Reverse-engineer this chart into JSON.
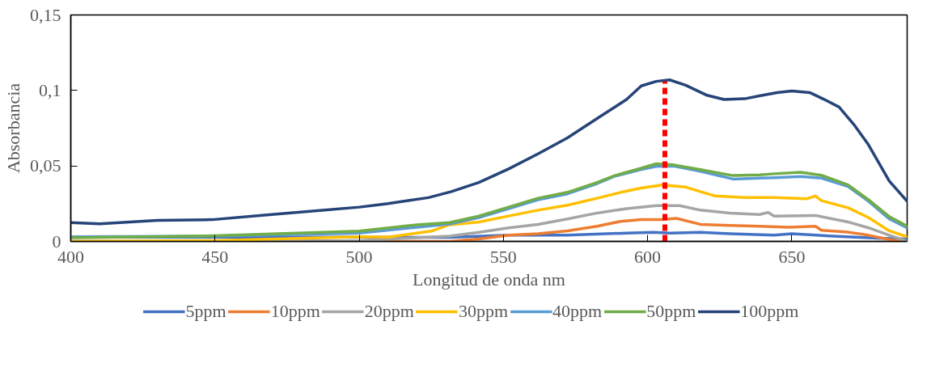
{
  "chart_data": {
    "type": "line",
    "xlabel": "Longitud de onda nm",
    "ylabel": "Absorbancia",
    "xlim": [
      400,
      690
    ],
    "xticks": [
      400,
      450,
      500,
      550,
      600,
      650
    ],
    "ylim": [
      0,
      0.15
    ],
    "yticks": [
      0,
      {
        "value": 0.05,
        "label": "0,05"
      },
      {
        "value": 0.1,
        "label": "0,1"
      },
      {
        "value": 0.15,
        "label": "0,15"
      }
    ],
    "grid": false,
    "legend": "bottom",
    "marker": "none",
    "line_style": "solid",
    "series": [
      {
        "name": "5ppm",
        "color": "#4472c4",
        "x": [
          400,
          450,
          500,
          531.3,
          551.8,
          572.2,
          592.7,
          602,
          608,
          618.3,
          628.5,
          643.9,
          650,
          664.4,
          679.7,
          690
        ],
        "values": [
          0.0028,
          0.0028,
          0.0028,
          0.0027,
          0.0041,
          0.0041,
          0.0055,
          0.006,
          0.0055,
          0.006,
          0.0051,
          0.0041,
          0.0051,
          0.0035,
          0.0022,
          0.0016
        ]
      },
      {
        "name": "10ppm",
        "color": "#ed7d31",
        "x": [
          400,
          450,
          505,
          531.3,
          541.5,
          551.8,
          562,
          572.2,
          582.5,
          590.7,
          597.8,
          605,
          610,
          618.3,
          628.5,
          638.8,
          649,
          658.2,
          660.3,
          669.5,
          676.6,
          683.8,
          687.9
        ],
        "values": [
          0,
          0,
          0,
          0,
          0.0016,
          0.0041,
          0.0051,
          0.007,
          0.01,
          0.0133,
          0.0145,
          0.0145,
          0.0153,
          0.0113,
          0.0106,
          0.01,
          0.0094,
          0.01,
          0.0074,
          0.0061,
          0.0041,
          0.0012,
          0
        ]
      },
      {
        "name": "20ppm",
        "color": "#a5a5a5",
        "x": [
          400,
          450,
          500,
          531.3,
          541.5,
          551.8,
          562,
          572.2,
          582.5,
          592.7,
          603,
          611.1,
          618.3,
          628.5,
          638.8,
          641.8,
          643.9,
          658.2,
          669.5,
          676.6,
          683.8,
          690
        ],
        "values": [
          0,
          0,
          0.0006,
          0.0035,
          0.006,
          0.009,
          0.0113,
          0.0149,
          0.0188,
          0.0217,
          0.0237,
          0.0237,
          0.0207,
          0.0188,
          0.0178,
          0.0192,
          0.0168,
          0.0172,
          0.0129,
          0.009,
          0.0041,
          0.0002
        ]
      },
      {
        "name": "30ppm",
        "color": "#ffc000",
        "x": [
          400,
          450,
          500,
          510,
          525,
          531.3,
          541.5,
          551.8,
          562,
          572.2,
          582.5,
          590.7,
          597.8,
          605,
          613.2,
          623.4,
          633.7,
          643.9,
          655.1,
          658.2,
          660.3,
          669.5,
          676.6,
          683.8,
          690
        ],
        "values": [
          0,
          0.0006,
          0.0031,
          0.0028,
          0.0068,
          0.011,
          0.0129,
          0.0168,
          0.0207,
          0.024,
          0.0286,
          0.0325,
          0.0354,
          0.0374,
          0.036,
          0.0301,
          0.029,
          0.0291,
          0.0282,
          0.0301,
          0.027,
          0.0223,
          0.0158,
          0.007,
          0.0031
        ]
      },
      {
        "name": "40ppm",
        "color": "#5b9bd5",
        "x": [
          400,
          450,
          500,
          531.3,
          541.5,
          551.8,
          562,
          572.2,
          582.5,
          588.6,
          597.8,
          603,
          609,
          618.3,
          629.6,
          638.8,
          643.9,
          653.1,
          660.3,
          669.5,
          676.6,
          683.8,
          690
        ],
        "values": [
          0.0031,
          0.0035,
          0.0055,
          0.0115,
          0.0158,
          0.0217,
          0.0276,
          0.0315,
          0.0383,
          0.0432,
          0.0477,
          0.0497,
          0.05,
          0.0465,
          0.0413,
          0.0419,
          0.0422,
          0.043,
          0.0419,
          0.0364,
          0.0266,
          0.0149,
          0.009
        ]
      },
      {
        "name": "50ppm",
        "color": "#70ad47",
        "x": [
          400,
          450,
          500,
          520,
          531.3,
          541.5,
          551.8,
          562,
          572.2,
          582.5,
          588.6,
          597.8,
          603,
          609,
          618.3,
          629.6,
          638.8,
          643.9,
          653.1,
          660.3,
          669.5,
          676.6,
          683.8,
          690
        ],
        "values": [
          0.0024,
          0.0037,
          0.0068,
          0.011,
          0.0125,
          0.0168,
          0.0227,
          0.0286,
          0.0325,
          0.039,
          0.0436,
          0.0485,
          0.0514,
          0.0507,
          0.0475,
          0.0436,
          0.044,
          0.0448,
          0.0458,
          0.0438,
          0.0374,
          0.0276,
          0.0164,
          0.01
        ]
      },
      {
        "name": "100ppm",
        "color": "#264478",
        "x": [
          400,
          410,
          430,
          449,
          468,
          488,
          500,
          510,
          517,
          524,
          532,
          541.5,
          551.8,
          562,
          572.2,
          582.5,
          592.7,
          597.8,
          603,
          607.6,
          613.2,
          620.3,
          626.5,
          633.7,
          638.8,
          644.9,
          650,
          656.2,
          661.3,
          666.4,
          671.5,
          676.6,
          683.8,
          690
        ],
        "values": [
          0.0124,
          0.0116,
          0.0139,
          0.0144,
          0.0176,
          0.0207,
          0.0227,
          0.025,
          0.027,
          0.029,
          0.033,
          0.039,
          0.048,
          0.058,
          0.0686,
          0.0814,
          0.094,
          0.103,
          0.106,
          0.107,
          0.1035,
          0.097,
          0.094,
          0.0945,
          0.0964,
          0.0986,
          0.0997,
          0.0986,
          0.094,
          0.089,
          0.0775,
          0.064,
          0.04,
          0.0266
        ]
      },
      {
        "color": "#ff0000",
        "x": [
          606,
          606
        ],
        "values": [
          0,
          0.106
        ],
        "line_style": "dashed"
      }
    ]
  }
}
